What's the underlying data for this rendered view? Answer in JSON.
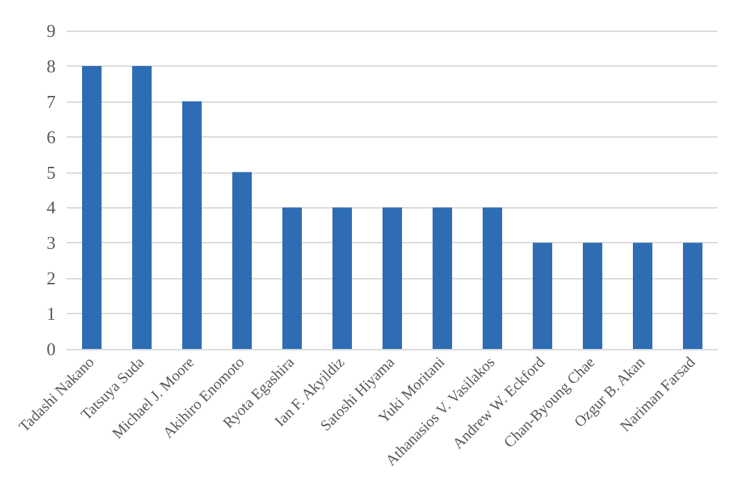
{
  "chart_data": {
    "type": "bar",
    "categories": [
      "Tadashi Nakano",
      "Tatsuya Suda",
      "Michael J. Moore",
      "Akihiro Enomoto",
      "Ryota Egashira",
      "Ian F. Akyildiz",
      "Satoshi Hiyama",
      "Yuki Moritani",
      "Athanasios V. Vasilakos",
      "Andrew W. Eckford",
      "Chan-Byoung Chae",
      "Ozgur B. Akan",
      "Nariman Farsad"
    ],
    "values": [
      8,
      8,
      7,
      5,
      4,
      4,
      4,
      4,
      4,
      3,
      3,
      3,
      3
    ],
    "color": "#2e6db4",
    "ylim": [
      0,
      9
    ],
    "yticks": [
      0,
      1,
      2,
      3,
      4,
      5,
      6,
      7,
      8,
      9
    ],
    "grid": "y"
  }
}
